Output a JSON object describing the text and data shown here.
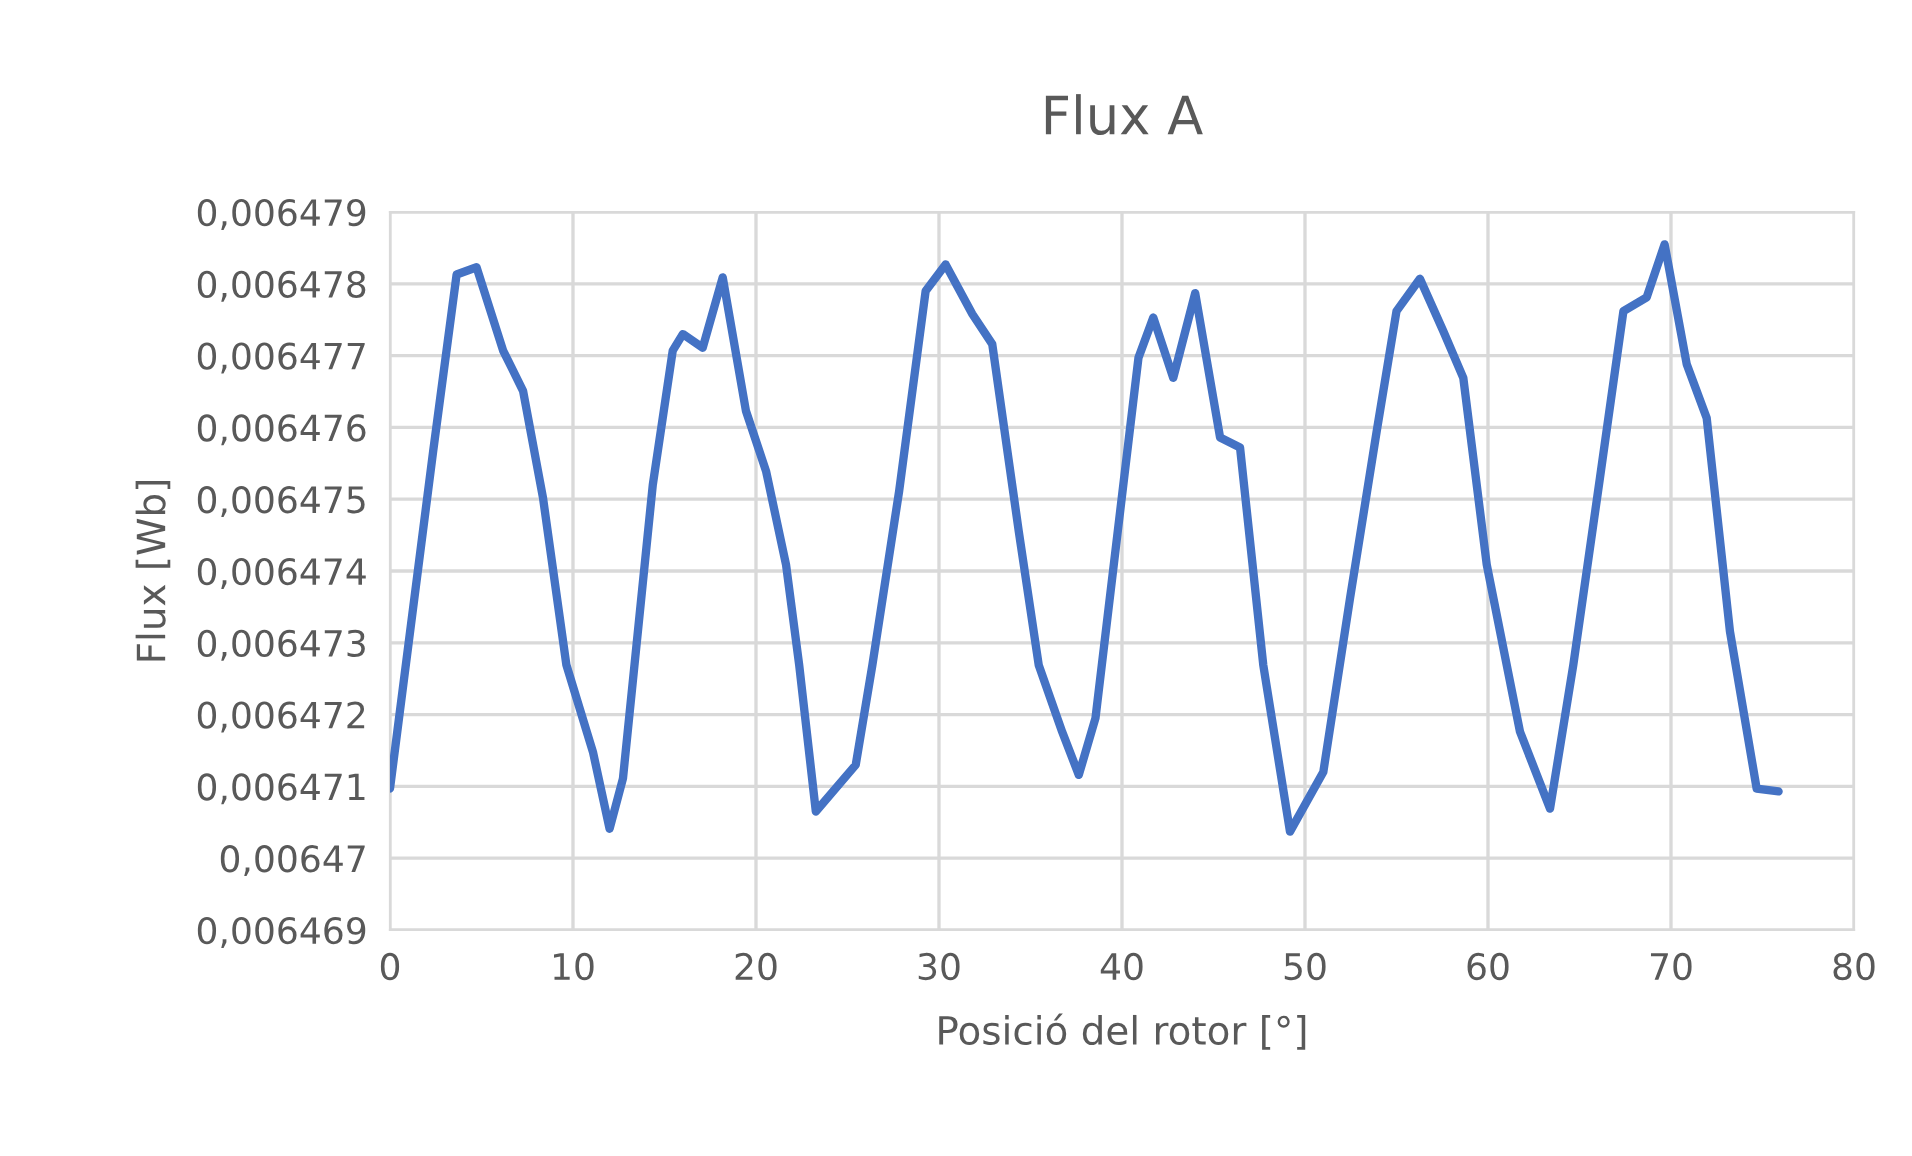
{
  "chart_data": {
    "type": "line",
    "title": "Flux A",
    "xlabel": "Posició del rotor [°]",
    "ylabel": "Flux [Wb]",
    "series": [
      {
        "color": "#4472c4",
        "x": [
          0,
          2.36,
          3.64,
          4.73,
          6.18,
          7.27,
          8.36,
          9.64,
          11.09,
          12.0,
          12.73,
          14.36,
          15.45,
          16.0,
          17.09,
          18.18,
          19.45,
          20.55,
          21.64,
          22.36,
          23.27,
          25.45,
          26.36,
          27.82,
          29.27,
          30.36,
          31.82,
          32.91,
          34.36,
          35.45,
          36.73,
          37.64,
          38.55,
          40.9,
          41.71,
          42.8,
          44.0,
          45.36,
          46.45,
          47.72,
          49.18,
          51.0,
          52.46,
          53.92,
          55.0,
          56.28,
          57.56,
          58.65,
          59.93,
          61.75,
          63.39,
          64.66,
          66.12,
          67.4,
          68.67,
          69.65,
          70.86,
          71.95,
          73.22,
          74.68,
          75.88
        ],
        "values": [
          0.00647097,
          0.00647567,
          0.00647813,
          0.00647823,
          0.00647707,
          0.00647651,
          0.00647502,
          0.00647269,
          0.00647148,
          0.00647041,
          0.00647111,
          0.0064752,
          0.00647707,
          0.0064773,
          0.00647711,
          0.00647809,
          0.00647623,
          0.00647539,
          0.00647409,
          0.00647269,
          0.00647065,
          0.0064713,
          0.00647269,
          0.00647511,
          0.0064779,
          0.00647827,
          0.00647758,
          0.00647716,
          0.00647455,
          0.00647269,
          0.00647176,
          0.00647116,
          0.00647195,
          0.00647697,
          0.00647753,
          0.00647669,
          0.00647787,
          0.00647586,
          0.00647572,
          0.00647269,
          0.00647037,
          0.0064712,
          0.00647362,
          0.00647595,
          0.00647762,
          0.00647807,
          0.00647734,
          0.00647669,
          0.00647409,
          0.00647176,
          0.00647069,
          0.00647269,
          0.0064753,
          0.00647762,
          0.00647781,
          0.00647855,
          0.00647688,
          0.00647613,
          0.00647316,
          0.00647097,
          0.00647093
        ]
      }
    ],
    "xlim": [
      0,
      80
    ],
    "xticks": [
      0,
      10,
      20,
      30,
      40,
      50,
      60,
      70,
      80
    ],
    "ylim": [
      0.006469,
      0.006479
    ],
    "yticks": [
      {
        "value": 0.006469,
        "label": "0,006469"
      },
      {
        "value": 0.00647,
        "label": "0,00647"
      },
      {
        "value": 0.006471,
        "label": "0,006471"
      },
      {
        "value": 0.006472,
        "label": "0,006472"
      },
      {
        "value": 0.006473,
        "label": "0,006473"
      },
      {
        "value": 0.006474,
        "label": "0,006474"
      },
      {
        "value": 0.006475,
        "label": "0,006475"
      },
      {
        "value": 0.006476,
        "label": "0,006476"
      },
      {
        "value": 0.006477,
        "label": "0,006477"
      },
      {
        "value": 0.006478,
        "label": "0,006478"
      },
      {
        "value": 0.006479,
        "label": "0,006479"
      }
    ],
    "grid": true,
    "line_style": "solid",
    "marker": "none"
  }
}
